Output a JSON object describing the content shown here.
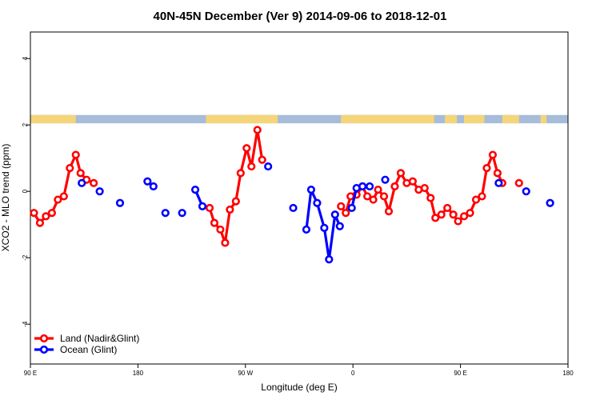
{
  "chart_data": {
    "type": "line",
    "title": "40N-45N December (Ver 9)   2014-09-06 to 2018-12-01",
    "xlabel": "Longitude (deg E)",
    "ylabel": "XCO2 - MLO trend (ppm)",
    "xlim": [
      90,
      540
    ],
    "ylim": [
      -5.2,
      4.8
    ],
    "x_ticks": [
      {
        "value": 90,
        "label": "90 E"
      },
      {
        "value": 180,
        "label": "180"
      },
      {
        "value": 270,
        "label": "90 W"
      },
      {
        "value": 360,
        "label": "0"
      },
      {
        "value": 450,
        "label": "90 E"
      },
      {
        "value": 540,
        "label": "180"
      }
    ],
    "y_ticks": [
      {
        "value": -4,
        "label": "-4"
      },
      {
        "value": -2,
        "label": "-2"
      },
      {
        "value": 0,
        "label": "0"
      },
      {
        "value": 2,
        "label": "2"
      },
      {
        "value": 4,
        "label": "4"
      }
    ],
    "land_sea_strip": {
      "y_range": [
        2.05,
        2.3
      ],
      "land_color": "#f5d57a",
      "ocean_color": "#a6bcd9",
      "land_spans": [
        [
          90,
          128
        ],
        [
          237,
          297
        ],
        [
          350,
          428
        ],
        [
          437,
          447
        ],
        [
          453,
          470
        ],
        [
          485,
          499
        ],
        [
          517,
          522
        ]
      ]
    },
    "legend": {
      "placement": "bottom-left",
      "entries": [
        {
          "name": "Land (Nadir&Glint)",
          "color": "#ff0000"
        },
        {
          "name": "Ocean (Glint)",
          "color": "#0000ff"
        }
      ]
    },
    "series": [
      {
        "name": "Land (Nadir&Glint)",
        "color": "#ff0000",
        "segments": [
          [
            [
              93,
              -0.65
            ],
            [
              98,
              -0.95
            ],
            [
              103,
              -0.75
            ],
            [
              108,
              -0.65
            ],
            [
              113,
              -0.25
            ],
            [
              118,
              -0.15
            ],
            [
              123,
              0.7
            ],
            [
              128,
              1.1
            ],
            [
              132,
              0.55
            ],
            [
              137,
              0.35
            ],
            [
              143,
              0.25
            ]
          ],
          [
            [
              240,
              -0.5
            ],
            [
              244,
              -0.95
            ],
            [
              249,
              -1.15
            ],
            [
              253,
              -1.55
            ],
            [
              257,
              -0.55
            ],
            [
              262,
              -0.3
            ],
            [
              266,
              0.55
            ],
            [
              271,
              1.3
            ],
            [
              275,
              0.75
            ],
            [
              280,
              1.85
            ],
            [
              284,
              0.95
            ]
          ],
          [
            [
              350,
              -0.45
            ],
            [
              354,
              -0.65
            ],
            [
              358,
              -0.15
            ],
            [
              363,
              -0.1
            ],
            [
              368,
              0.15
            ],
            [
              372,
              -0.15
            ],
            [
              377,
              -0.25
            ],
            [
              381,
              0.05
            ],
            [
              386,
              -0.15
            ],
            [
              390,
              -0.6
            ],
            [
              395,
              0.15
            ],
            [
              400,
              0.55
            ],
            [
              405,
              0.25
            ],
            [
              410,
              0.3
            ],
            [
              415,
              0.05
            ],
            [
              420,
              0.1
            ],
            [
              425,
              -0.2
            ],
            [
              429,
              -0.8
            ],
            [
              434,
              -0.7
            ],
            [
              439,
              -0.5
            ],
            [
              444,
              -0.7
            ],
            [
              448,
              -0.9
            ],
            [
              453,
              -0.75
            ],
            [
              458,
              -0.65
            ],
            [
              463,
              -0.25
            ],
            [
              468,
              -0.15
            ],
            [
              472,
              0.7
            ],
            [
              477,
              1.1
            ],
            [
              481,
              0.55
            ],
            [
              485,
              0.25
            ]
          ],
          [
            [
              499,
              0.25
            ]
          ]
        ]
      },
      {
        "name": "Ocean (Glint)",
        "color": "#0000ff",
        "segments": [
          [
            [
              133,
              0.25
            ]
          ],
          [
            [
              148,
              0.0
            ]
          ],
          [
            [
              165,
              -0.35
            ]
          ],
          [
            [
              188,
              0.3
            ],
            [
              193,
              0.15
            ]
          ],
          [
            [
              203,
              -0.65
            ]
          ],
          [
            [
              217,
              -0.65
            ]
          ],
          [
            [
              228,
              0.05
            ],
            [
              234,
              -0.45
            ]
          ],
          [
            [
              289,
              0.75
            ]
          ],
          [
            [
              310,
              -0.5
            ]
          ],
          [
            [
              321,
              -1.15
            ],
            [
              325,
              0.05
            ],
            [
              330,
              -0.35
            ],
            [
              336,
              -1.1
            ],
            [
              340,
              -2.05
            ],
            [
              345,
              -0.7
            ],
            [
              349,
              -1.05
            ]
          ],
          [
            [
              359,
              -0.5
            ],
            [
              363,
              0.1
            ],
            [
              368,
              0.15
            ],
            [
              374,
              0.15
            ]
          ],
          [
            [
              387,
              0.35
            ]
          ],
          [
            [
              482,
              0.25
            ]
          ],
          [
            [
              505,
              0.0
            ]
          ],
          [
            [
              525,
              -0.35
            ]
          ]
        ]
      }
    ]
  }
}
